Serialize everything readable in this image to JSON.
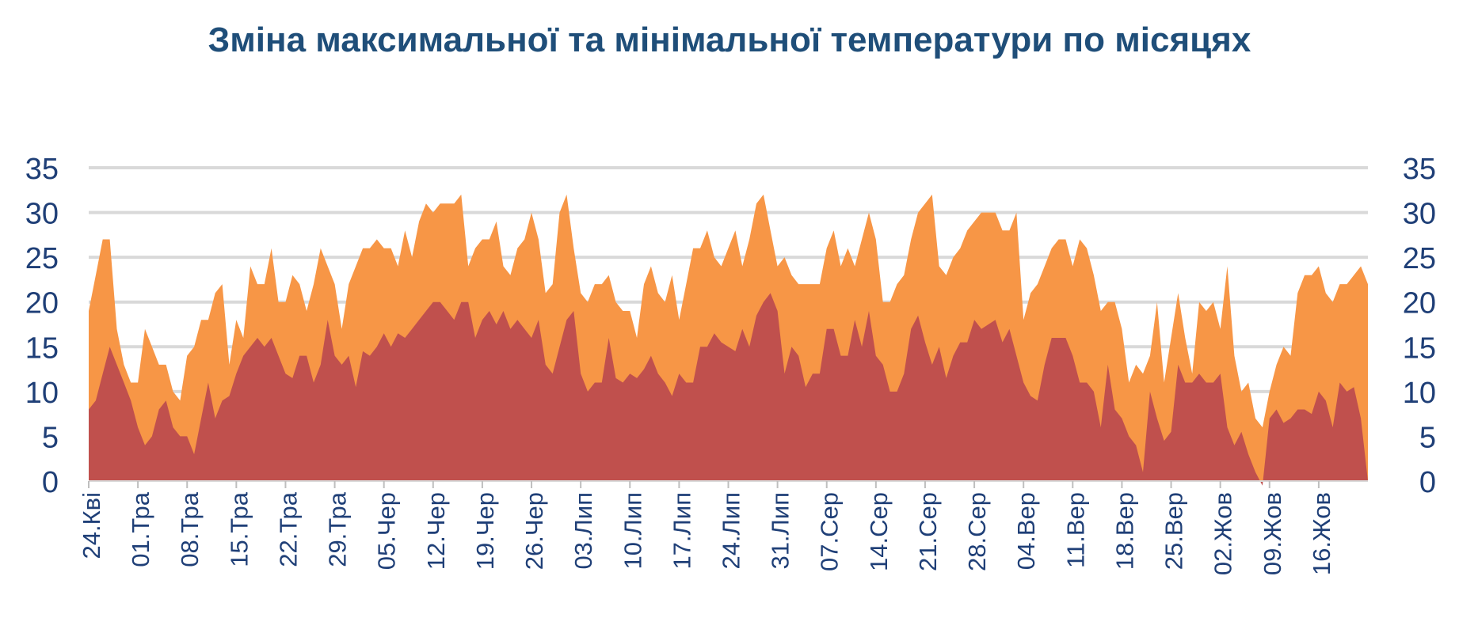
{
  "chart_data": {
    "type": "area",
    "title": "Зміна максимальної та мінімальної температури по місяцях",
    "xlabel": "",
    "ylabel": "",
    "ylim": [
      0,
      35
    ],
    "yticks": [
      0,
      5,
      10,
      15,
      20,
      25,
      30,
      35
    ],
    "grid": true,
    "secondary_y_axis": true,
    "x_tick_labels": [
      "24.Кві",
      "01.Тра",
      "08.Тра",
      "15.Тра",
      "22.Тра",
      "29.Тра",
      "05.Чер",
      "12.Чер",
      "19.Чер",
      "26.Чер",
      "03.Лип",
      "10.Лип",
      "17.Лип",
      "24.Лип",
      "31.Лип",
      "07.Сер",
      "14.Сер",
      "21.Сер",
      "28.Сер",
      "04.Вер",
      "11.Вер",
      "18.Вер",
      "25.Вер",
      "02.Жов",
      "09.Жов",
      "16.Жов"
    ],
    "series": [
      {
        "color": "#f79646",
        "values": [
          19,
          23,
          27,
          27,
          17,
          13,
          11,
          11,
          17,
          15,
          13,
          13,
          10,
          9,
          14,
          15,
          18,
          18,
          21,
          22,
          13,
          18,
          16,
          24,
          22,
          22,
          26,
          20,
          20,
          23,
          22,
          19,
          22,
          26,
          24,
          22,
          17,
          22,
          24,
          26,
          26,
          27,
          26,
          26,
          24,
          28,
          25,
          29,
          31,
          30,
          31,
          31,
          31,
          32,
          24,
          26,
          27,
          27,
          29,
          24,
          23,
          26,
          27,
          30,
          27,
          21,
          22,
          30,
          32,
          26,
          21,
          20,
          22,
          22,
          23,
          20,
          19,
          19,
          16,
          22,
          24,
          21,
          20,
          23,
          18,
          22,
          26,
          26,
          28,
          25,
          24,
          26,
          28,
          24,
          27,
          31,
          32,
          28,
          24,
          25,
          23,
          22,
          22,
          22,
          22,
          26,
          28,
          24,
          26,
          24,
          27,
          30,
          27,
          20,
          20,
          22,
          23,
          27,
          30,
          31,
          32,
          24,
          23,
          25,
          26,
          28,
          29,
          30,
          30,
          30,
          28,
          28,
          30,
          18,
          21,
          22,
          24,
          26,
          27,
          27,
          24,
          27,
          26,
          23,
          19,
          20,
          20,
          17,
          11,
          13,
          12,
          14,
          20,
          11,
          16,
          21,
          16,
          12,
          20,
          19,
          20,
          17,
          24,
          14,
          10,
          11,
          7,
          6,
          10,
          13,
          15,
          14,
          21,
          23,
          23,
          24,
          21,
          20,
          22,
          22,
          23,
          24,
          22
        ]
      },
      {
        "color": "#c0504d",
        "values": [
          8,
          9,
          12,
          15,
          13,
          11,
          9,
          6,
          4,
          5,
          8,
          9,
          6,
          5,
          5,
          3,
          7,
          11,
          7,
          9,
          9.5,
          12,
          14,
          15,
          16,
          15,
          16,
          14,
          12,
          11.5,
          14,
          14,
          11,
          13,
          18,
          14,
          13,
          14,
          10.5,
          14.5,
          14,
          15,
          16.5,
          15,
          16.5,
          16,
          17,
          18,
          19,
          20,
          20,
          19,
          18,
          20,
          20,
          16,
          18,
          19,
          17.5,
          19,
          17,
          18,
          17,
          16,
          18,
          13,
          12,
          15,
          18,
          19,
          12,
          10,
          11,
          11,
          16,
          11.5,
          11,
          12,
          11.5,
          12.5,
          14,
          12,
          11,
          9.5,
          12,
          11,
          11,
          15,
          15,
          16.5,
          15.5,
          15,
          14.5,
          17,
          15,
          18.5,
          20,
          21,
          19,
          12,
          15,
          14,
          10.5,
          12,
          12,
          17,
          17,
          14,
          14,
          18,
          15,
          19,
          14,
          13,
          10,
          10,
          12,
          17,
          18.5,
          15.5,
          13,
          15,
          11.5,
          14,
          15.5,
          15.5,
          18,
          17,
          17.5,
          18,
          15.5,
          17,
          14,
          11,
          9.5,
          9,
          13,
          16,
          16,
          16,
          14,
          11,
          11,
          10,
          6,
          13,
          8,
          7,
          5,
          4,
          1,
          10,
          7,
          4.5,
          5.5,
          13,
          11,
          11,
          12,
          11,
          11,
          12,
          6,
          4,
          5.5,
          3,
          1,
          -0.5,
          7,
          8,
          6.5,
          7,
          8,
          8,
          7.5,
          10,
          9,
          6,
          11,
          10,
          10.5,
          7
        ]
      }
    ]
  }
}
